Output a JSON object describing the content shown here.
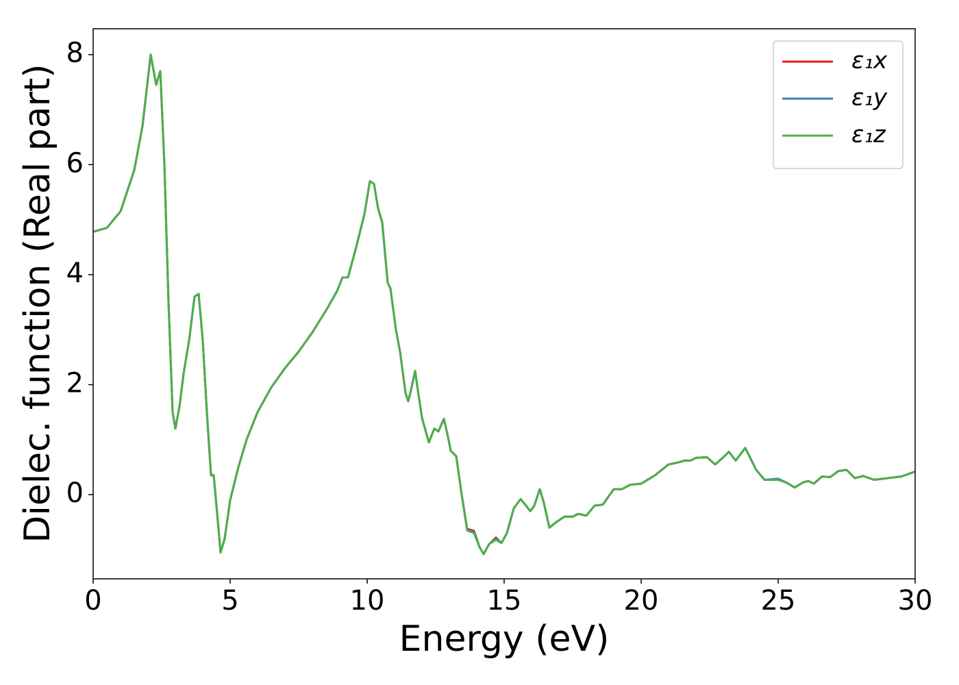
{
  "chart_data": {
    "type": "line",
    "xlabel": "Energy (eV)",
    "ylabel": "Dielec. function (Real part)",
    "x": [
      0,
      0.5,
      1.0,
      1.5,
      1.8,
      2.1,
      2.3,
      2.45,
      2.6,
      2.75,
      2.9,
      3.0,
      3.15,
      3.3,
      3.5,
      3.7,
      3.85,
      4.0,
      4.15,
      4.3,
      4.4,
      4.5,
      4.65,
      4.8,
      5.0,
      5.3,
      5.6,
      6.0,
      6.5,
      7.0,
      7.5,
      8.0,
      8.5,
      8.9,
      9.1,
      9.3,
      9.6,
      9.9,
      10.1,
      10.25,
      10.4,
      10.55,
      10.75,
      10.85,
      11.05,
      11.2,
      11.4,
      11.5,
      11.6,
      11.75,
      11.85,
      12.0,
      12.25,
      12.45,
      12.6,
      12.8,
      12.95,
      13.05,
      13.25,
      13.45,
      13.65,
      13.9,
      14.1,
      14.25,
      14.45,
      14.7,
      14.9,
      15.1,
      15.35,
      15.6,
      15.8,
      15.95,
      16.1,
      16.3,
      16.45,
      16.65,
      16.9,
      17.2,
      17.5,
      17.7,
      18.0,
      18.3,
      18.6,
      19.0,
      19.3,
      19.6,
      20.0,
      20.5,
      21.0,
      21.3,
      21.6,
      21.8,
      22.0,
      22.4,
      22.7,
      23.0,
      23.2,
      23.45,
      23.8,
      24.0,
      24.2,
      24.5,
      25.0,
      25.3,
      25.6,
      25.9,
      26.1,
      26.3,
      26.6,
      26.9,
      27.2,
      27.5,
      27.8,
      28.1,
      28.5,
      29.0,
      29.5,
      30.0
    ],
    "series": [
      {
        "name": "ε₁x",
        "color": "#e41a1c",
        "values": [
          4.78,
          4.85,
          5.15,
          5.9,
          6.7,
          8.0,
          7.45,
          7.7,
          6.0,
          3.5,
          1.5,
          1.2,
          1.6,
          2.2,
          2.8,
          3.6,
          3.65,
          2.8,
          1.5,
          0.35,
          0.35,
          -0.2,
          -1.05,
          -0.8,
          -0.1,
          0.5,
          1.0,
          1.5,
          1.95,
          2.3,
          2.6,
          2.95,
          3.35,
          3.7,
          3.95,
          3.95,
          4.5,
          5.1,
          5.7,
          5.65,
          5.2,
          4.95,
          3.85,
          3.75,
          3.0,
          2.6,
          1.85,
          1.7,
          1.9,
          2.25,
          1.9,
          1.4,
          0.95,
          1.2,
          1.15,
          1.38,
          1.05,
          0.8,
          0.7,
          0,
          -0.62,
          -0.66,
          -0.95,
          -1.08,
          -0.9,
          -0.78,
          -0.88,
          -0.7,
          -0.25,
          -0.08,
          -0.2,
          -0.3,
          -0.2,
          0.1,
          -0.15,
          -0.6,
          -0.5,
          -0.4,
          -0.4,
          -0.35,
          -0.38,
          -0.2,
          -0.18,
          0.1,
          0.1,
          0.18,
          0.2,
          0.35,
          0.55,
          0.58,
          0.62,
          0.62,
          0.67,
          0.68,
          0.55,
          0.68,
          0.78,
          0.62,
          0.85,
          0.65,
          0.45,
          0.27,
          0.28,
          0.22,
          0.13,
          0.22,
          0.25,
          0.2,
          0.33,
          0.32,
          0.43,
          0.45,
          0.3,
          0.34,
          0.27,
          0.3,
          0.33,
          0.42
        ]
      },
      {
        "name": "ε₁y",
        "color": "#377eb8",
        "values": [
          4.78,
          4.85,
          5.15,
          5.9,
          6.7,
          8.0,
          7.45,
          7.7,
          6.0,
          3.5,
          1.5,
          1.2,
          1.6,
          2.2,
          2.8,
          3.6,
          3.65,
          2.8,
          1.5,
          0.37,
          0.35,
          -0.2,
          -1.05,
          -0.8,
          -0.1,
          0.5,
          1.0,
          1.5,
          1.95,
          2.3,
          2.6,
          2.95,
          3.35,
          3.7,
          3.95,
          3.95,
          4.5,
          5.1,
          5.7,
          5.65,
          5.2,
          4.95,
          3.85,
          3.75,
          3.0,
          2.6,
          1.85,
          1.7,
          1.9,
          2.25,
          1.9,
          1.4,
          0.95,
          1.2,
          1.15,
          1.38,
          1.05,
          0.8,
          0.7,
          0,
          -0.64,
          -0.68,
          -0.95,
          -1.08,
          -0.9,
          -0.8,
          -0.88,
          -0.7,
          -0.25,
          -0.08,
          -0.2,
          -0.3,
          -0.2,
          0.1,
          -0.15,
          -0.6,
          -0.5,
          -0.4,
          -0.4,
          -0.35,
          -0.38,
          -0.2,
          -0.18,
          0.1,
          0.1,
          0.18,
          0.2,
          0.35,
          0.55,
          0.58,
          0.62,
          0.62,
          0.67,
          0.68,
          0.55,
          0.68,
          0.78,
          0.62,
          0.85,
          0.65,
          0.45,
          0.27,
          0.29,
          0.22,
          0.13,
          0.22,
          0.25,
          0.2,
          0.33,
          0.32,
          0.43,
          0.45,
          0.3,
          0.34,
          0.27,
          0.3,
          0.33,
          0.42
        ]
      },
      {
        "name": "ε₁z",
        "color": "#4daf4a",
        "values": [
          4.78,
          4.85,
          5.15,
          5.9,
          6.7,
          8.0,
          7.45,
          7.7,
          6.0,
          3.5,
          1.5,
          1.2,
          1.6,
          2.2,
          2.8,
          3.6,
          3.65,
          2.8,
          1.5,
          0.35,
          0.35,
          -0.2,
          -1.05,
          -0.8,
          -0.1,
          0.5,
          1.0,
          1.5,
          1.95,
          2.3,
          2.6,
          2.95,
          3.35,
          3.7,
          3.95,
          3.95,
          4.5,
          5.1,
          5.7,
          5.65,
          5.2,
          4.95,
          3.85,
          3.75,
          3.0,
          2.6,
          1.85,
          1.7,
          1.9,
          2.25,
          1.9,
          1.4,
          0.95,
          1.2,
          1.15,
          1.38,
          1.05,
          0.8,
          0.7,
          0,
          -0.65,
          -0.7,
          -0.95,
          -1.08,
          -0.9,
          -0.82,
          -0.88,
          -0.7,
          -0.25,
          -0.08,
          -0.2,
          -0.3,
          -0.2,
          0.1,
          -0.15,
          -0.6,
          -0.5,
          -0.4,
          -0.4,
          -0.35,
          -0.38,
          -0.2,
          -0.18,
          0.1,
          0.1,
          0.18,
          0.2,
          0.35,
          0.55,
          0.58,
          0.62,
          0.62,
          0.67,
          0.68,
          0.55,
          0.68,
          0.78,
          0.62,
          0.85,
          0.65,
          0.45,
          0.27,
          0.27,
          0.22,
          0.13,
          0.22,
          0.25,
          0.2,
          0.33,
          0.32,
          0.43,
          0.45,
          0.3,
          0.34,
          0.27,
          0.3,
          0.33,
          0.42
        ]
      }
    ],
    "xlim": [
      0,
      30
    ],
    "xticks": [
      0,
      5,
      10,
      15,
      20,
      25,
      30
    ],
    "ylim": [
      -1.53,
      8.47
    ],
    "yticks": [
      0,
      2,
      4,
      6,
      8
    ],
    "legend": "upper right",
    "grid": false
  }
}
